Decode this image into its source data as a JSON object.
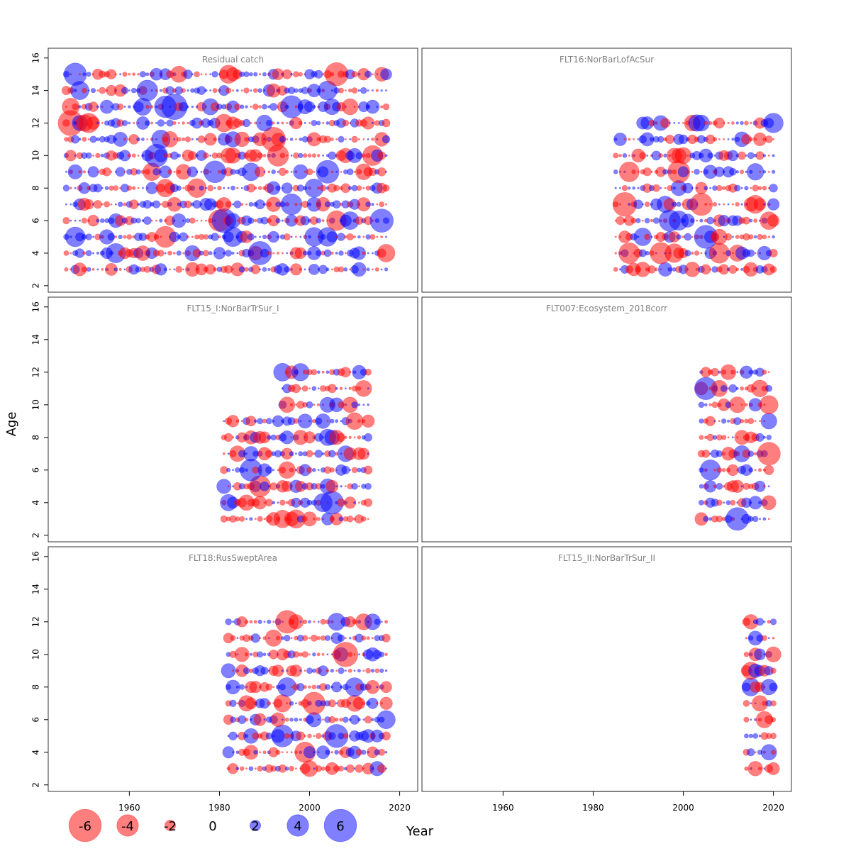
{
  "chart_data": {
    "type": "scatter",
    "subtype": "bubble residual plot",
    "xlabel": "Year",
    "ylabel": "Age",
    "xlim": [
      1942,
      2024
    ],
    "ylim": [
      1.6,
      16.6
    ],
    "x_ticks": [
      "1960",
      "1980",
      "2000",
      "2020"
    ],
    "y_ticks": [
      "2",
      "4",
      "6",
      "8",
      "10",
      "12",
      "14",
      "16"
    ],
    "colors": {
      "positive": "#0000ff",
      "negative": "#ff0000",
      "alpha": 0.5
    },
    "legend": {
      "placement": "bottom-left",
      "values": [
        -6,
        -4,
        -2,
        0,
        2,
        4,
        6
      ],
      "labels": [
        "-6",
        "-4",
        "-2",
        "0",
        "2",
        "4",
        "6"
      ]
    },
    "panels": [
      {
        "title": "Residual catch",
        "years": [
          1946,
          2017
        ],
        "ages": [
          3,
          15
        ],
        "seed": 11
      },
      {
        "title": "FLT16:NorBarLofAcSur",
        "years": [
          1985,
          2020
        ],
        "ages": [
          3,
          12
        ],
        "seed": 23,
        "exclude": [
          {
            "years": [
              1985,
              1990
            ],
            "ages": [
              12,
              12
            ]
          }
        ]
      },
      {
        "title": "FLT15_I:NorBarTrSur_I",
        "years": [
          1981,
          2013
        ],
        "ages": [
          3,
          12
        ],
        "seed": 37,
        "exclude": [
          {
            "years": [
              1981,
              1993
            ],
            "ages": [
              10,
              12
            ]
          }
        ]
      },
      {
        "title": "FLT007:Ecosystem_2018corr",
        "years": [
          2004,
          2019
        ],
        "ages": [
          3,
          12
        ],
        "seed": 41
      },
      {
        "title": "FLT18:RusSweptArea",
        "years": [
          1982,
          2017
        ],
        "ages": [
          3,
          12
        ],
        "seed": 53
      },
      {
        "title": "FLT15_II:NorBarTrSur_II",
        "years": [
          2014,
          2020
        ],
        "ages": [
          3,
          12
        ],
        "seed": 67
      }
    ]
  }
}
